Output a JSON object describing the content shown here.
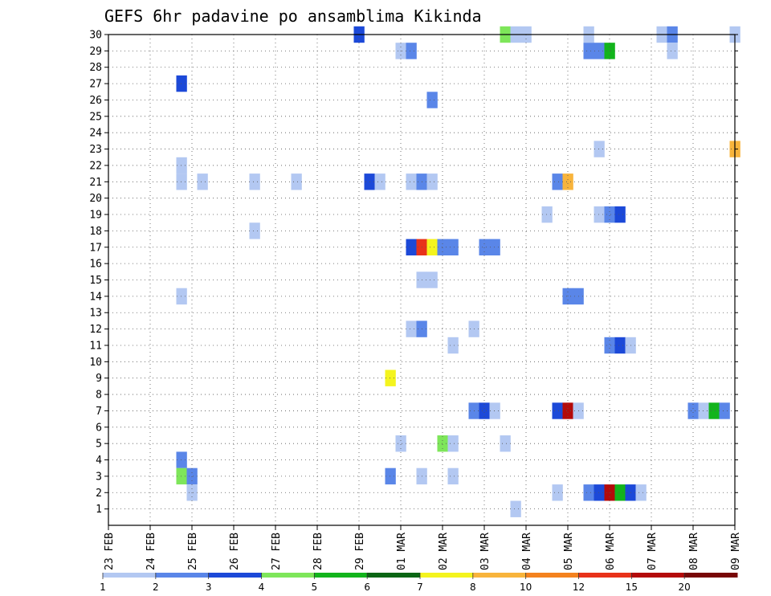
{
  "chart_data": {
    "type": "heatmap",
    "title": "GEFS 6hr padavine po ansamblima Kikinda",
    "y_ticks": [
      "1",
      "2",
      "3",
      "4",
      "5",
      "6",
      "7",
      "8",
      "9",
      "10",
      "11",
      "12",
      "13",
      "14",
      "15",
      "16",
      "17",
      "18",
      "19",
      "20",
      "21",
      "22",
      "23",
      "24",
      "25",
      "26",
      "27",
      "28",
      "29",
      "30"
    ],
    "x_ticks": [
      "23 FEB",
      "24 FEB",
      "25 FEB",
      "26 FEB",
      "27 FEB",
      "28 FEB",
      "29 FEB",
      "01 MAR",
      "02 MAR",
      "03 MAR",
      "04 MAR",
      "05 MAR",
      "06 MAR",
      "07 MAR",
      "08 MAR",
      "09 MAR"
    ],
    "xlim_days": [
      0,
      15
    ],
    "ylim": [
      0,
      30
    ],
    "grid": true,
    "colorbar": {
      "colors": [
        "#b3c8f2",
        "#5a86e8",
        "#1c49d8",
        "#7ee65a",
        "#12b41c",
        "#0a6614",
        "#f4f41e",
        "#f8b43c",
        "#f4821e",
        "#e8321a",
        "#b40a0a",
        "#780707"
      ],
      "labels": [
        "1",
        "2",
        "3",
        "4",
        "5",
        "6",
        "7",
        "8",
        "10",
        "12",
        "15",
        "20"
      ]
    },
    "cells": [
      {
        "day": 6.0,
        "member": 30,
        "level": 3
      },
      {
        "day": 9.5,
        "member": 30,
        "level": 4
      },
      {
        "day": 9.75,
        "member": 30,
        "level": 1
      },
      {
        "day": 10.0,
        "member": 30,
        "level": 1
      },
      {
        "day": 11.5,
        "member": 30,
        "level": 1
      },
      {
        "day": 13.25,
        "member": 30,
        "level": 1
      },
      {
        "day": 13.5,
        "member": 30,
        "level": 2
      },
      {
        "day": 15.0,
        "member": 30,
        "level": 1
      },
      {
        "day": 7.0,
        "member": 29,
        "level": 1
      },
      {
        "day": 7.25,
        "member": 29,
        "level": 2
      },
      {
        "day": 11.5,
        "member": 29,
        "level": 2
      },
      {
        "day": 11.75,
        "member": 29,
        "level": 2
      },
      {
        "day": 12.0,
        "member": 29,
        "level": 5
      },
      {
        "day": 13.5,
        "member": 29,
        "level": 1
      },
      {
        "day": 1.75,
        "member": 27,
        "level": 3
      },
      {
        "day": 7.75,
        "member": 26,
        "level": 2
      },
      {
        "day": 11.75,
        "member": 23,
        "level": 1
      },
      {
        "day": 15.0,
        "member": 23,
        "level": 8
      },
      {
        "day": 1.75,
        "member": 22,
        "level": 1
      },
      {
        "day": 1.75,
        "member": 21,
        "level": 1
      },
      {
        "day": 2.25,
        "member": 21,
        "level": 1
      },
      {
        "day": 3.5,
        "member": 21,
        "level": 1
      },
      {
        "day": 4.5,
        "member": 21,
        "level": 1
      },
      {
        "day": 6.25,
        "member": 21,
        "level": 3
      },
      {
        "day": 6.5,
        "member": 21,
        "level": 1
      },
      {
        "day": 7.25,
        "member": 21,
        "level": 1
      },
      {
        "day": 7.5,
        "member": 21,
        "level": 2
      },
      {
        "day": 7.75,
        "member": 21,
        "level": 1
      },
      {
        "day": 10.75,
        "member": 21,
        "level": 2
      },
      {
        "day": 11.0,
        "member": 21,
        "level": 8
      },
      {
        "day": 10.5,
        "member": 19,
        "level": 1
      },
      {
        "day": 11.75,
        "member": 19,
        "level": 1
      },
      {
        "day": 12.0,
        "member": 19,
        "level": 2
      },
      {
        "day": 12.25,
        "member": 19,
        "level": 3
      },
      {
        "day": 3.5,
        "member": 18,
        "level": 1
      },
      {
        "day": 7.25,
        "member": 17,
        "level": 3
      },
      {
        "day": 7.5,
        "member": 17,
        "level": 10
      },
      {
        "day": 7.75,
        "member": 17,
        "level": 7
      },
      {
        "day": 8.0,
        "member": 17,
        "level": 2
      },
      {
        "day": 8.25,
        "member": 17,
        "level": 2
      },
      {
        "day": 9.0,
        "member": 17,
        "level": 2
      },
      {
        "day": 9.25,
        "member": 17,
        "level": 2
      },
      {
        "day": 7.5,
        "member": 15,
        "level": 1
      },
      {
        "day": 7.75,
        "member": 15,
        "level": 1
      },
      {
        "day": 1.75,
        "member": 14,
        "level": 1
      },
      {
        "day": 11.0,
        "member": 14,
        "level": 2
      },
      {
        "day": 11.25,
        "member": 14,
        "level": 2
      },
      {
        "day": 7.25,
        "member": 12,
        "level": 1
      },
      {
        "day": 7.5,
        "member": 12,
        "level": 2
      },
      {
        "day": 8.75,
        "member": 12,
        "level": 1
      },
      {
        "day": 8.25,
        "member": 11,
        "level": 1
      },
      {
        "day": 12.0,
        "member": 11,
        "level": 2
      },
      {
        "day": 12.25,
        "member": 11,
        "level": 3
      },
      {
        "day": 12.5,
        "member": 11,
        "level": 1
      },
      {
        "day": 6.75,
        "member": 9,
        "level": 7
      },
      {
        "day": 8.75,
        "member": 7,
        "level": 2
      },
      {
        "day": 9.0,
        "member": 7,
        "level": 3
      },
      {
        "day": 9.25,
        "member": 7,
        "level": 1
      },
      {
        "day": 10.75,
        "member": 7,
        "level": 3
      },
      {
        "day": 11.0,
        "member": 7,
        "level": 11
      },
      {
        "day": 11.25,
        "member": 7,
        "level": 1
      },
      {
        "day": 14.0,
        "member": 7,
        "level": 2
      },
      {
        "day": 14.25,
        "member": 7,
        "level": 1
      },
      {
        "day": 14.5,
        "member": 7,
        "level": 5
      },
      {
        "day": 14.75,
        "member": 7,
        "level": 2
      },
      {
        "day": 7.0,
        "member": 5,
        "level": 1
      },
      {
        "day": 8.0,
        "member": 5,
        "level": 4
      },
      {
        "day": 8.25,
        "member": 5,
        "level": 1
      },
      {
        "day": 9.5,
        "member": 5,
        "level": 1
      },
      {
        "day": 1.75,
        "member": 4,
        "level": 2
      },
      {
        "day": 1.75,
        "member": 3,
        "level": 4
      },
      {
        "day": 2.0,
        "member": 3,
        "level": 2
      },
      {
        "day": 6.75,
        "member": 3,
        "level": 2
      },
      {
        "day": 7.5,
        "member": 3,
        "level": 1
      },
      {
        "day": 8.25,
        "member": 3,
        "level": 1
      },
      {
        "day": 2.0,
        "member": 2,
        "level": 1
      },
      {
        "day": 10.75,
        "member": 2,
        "level": 1
      },
      {
        "day": 11.5,
        "member": 2,
        "level": 2
      },
      {
        "day": 11.75,
        "member": 2,
        "level": 3
      },
      {
        "day": 12.0,
        "member": 2,
        "level": 11
      },
      {
        "day": 12.25,
        "member": 2,
        "level": 5
      },
      {
        "day": 12.5,
        "member": 2,
        "level": 3
      },
      {
        "day": 12.75,
        "member": 2,
        "level": 1
      },
      {
        "day": 9.75,
        "member": 1,
        "level": 1
      }
    ]
  }
}
